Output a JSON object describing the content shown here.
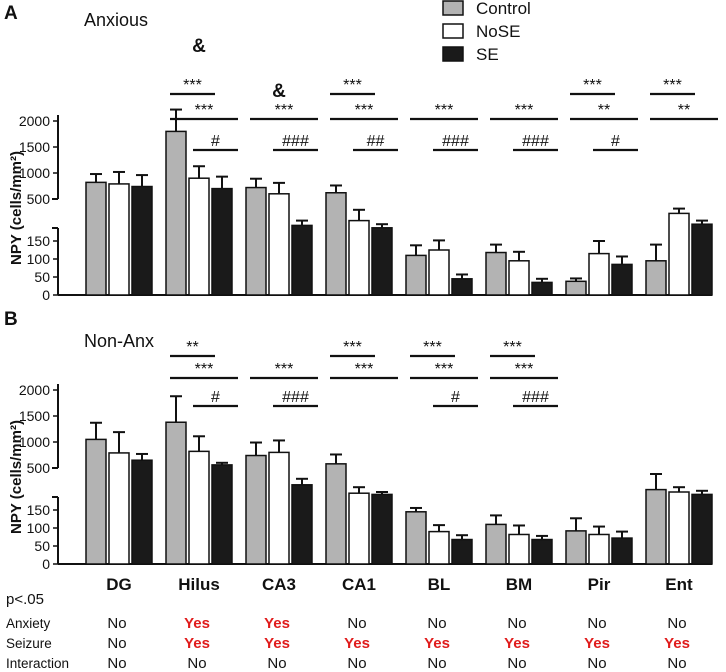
{
  "legend": {
    "items": [
      {
        "label": "Control",
        "color": "#b3b3b3"
      },
      {
        "label": "NoSE",
        "color": "#ffffff"
      },
      {
        "label": "SE",
        "color": "#1a1a1a"
      }
    ]
  },
  "colors": {
    "control": "#b3b3b3",
    "nose": "#ffffff",
    "se": "#1a1a1a",
    "text": "#111111",
    "highlight": "#e01b1b"
  },
  "chart_data": [
    {
      "type": "bar",
      "panel_letter": "A",
      "title": "Anxious",
      "ylabel": "NPY (cells/mm²)",
      "categories": [
        "DG",
        "Hilus",
        "CA3",
        "CA1",
        "BL",
        "BM",
        "Pir",
        "Ent"
      ],
      "axis_break": true,
      "upper_ticks": [
        "500",
        "1000",
        "1500",
        "2000"
      ],
      "lower_ticks": [
        "0",
        "50",
        "100",
        "150"
      ],
      "series": [
        {
          "name": "Control",
          "values": [
            820,
            1800,
            720,
            620,
            110,
            118,
            38,
            95
          ],
          "errors": [
            160,
            420,
            170,
            140,
            28,
            22,
            8,
            45
          ]
        },
        {
          "name": "NoSE",
          "values": [
            790,
            900,
            600,
            320,
            125,
            95,
            115,
            380
          ],
          "errors": [
            230,
            230,
            210,
            90,
            30,
            25,
            35,
            40
          ]
        },
        {
          "name": "SE",
          "values": [
            740,
            700,
            280,
            260,
            45,
            35,
            85,
            290
          ],
          "errors": [
            220,
            230,
            40,
            30,
            12,
            10,
            22,
            30
          ]
        }
      ],
      "annotations": [
        {
          "text": "&",
          "cat": 1
        },
        {
          "text": "&",
          "cat": 2
        },
        {
          "text": "***",
          "cat": 1,
          "from": 0,
          "to": 1,
          "row": 0
        },
        {
          "text": "***",
          "cat": 1,
          "from": 0,
          "to": 2,
          "row": 1
        },
        {
          "text": "#",
          "cat": 1,
          "from": 1,
          "to": 2,
          "row": 2
        },
        {
          "text": "***",
          "cat": 2,
          "from": 0,
          "to": 2,
          "row": 1
        },
        {
          "text": "###",
          "cat": 2,
          "from": 1,
          "to": 2,
          "row": 2
        },
        {
          "text": "***",
          "cat": 3,
          "from": 0,
          "to": 1,
          "row": 0
        },
        {
          "text": "***",
          "cat": 3,
          "from": 0,
          "to": 2,
          "row": 1
        },
        {
          "text": "##",
          "cat": 3,
          "from": 1,
          "to": 2,
          "row": 2
        },
        {
          "text": "***",
          "cat": 4,
          "from": 0,
          "to": 2,
          "row": 1
        },
        {
          "text": "###",
          "cat": 4,
          "from": 1,
          "to": 2,
          "row": 2
        },
        {
          "text": "***",
          "cat": 5,
          "from": 0,
          "to": 2,
          "row": 1
        },
        {
          "text": "###",
          "cat": 5,
          "from": 1,
          "to": 2,
          "row": 2
        },
        {
          "text": "***",
          "cat": 6,
          "from": 0,
          "to": 1,
          "row": 0
        },
        {
          "text": "**",
          "cat": 6,
          "from": 0,
          "to": 2,
          "row": 1
        },
        {
          "text": "#",
          "cat": 6,
          "from": 1,
          "to": 2,
          "row": 2
        },
        {
          "text": "***",
          "cat": 7,
          "from": 0,
          "to": 1,
          "row": 0
        },
        {
          "text": "**",
          "cat": 7,
          "from": 0,
          "to": 2,
          "row": 1
        }
      ]
    },
    {
      "type": "bar",
      "panel_letter": "B",
      "title": "Non-Anx",
      "ylabel": "NPY (cells/mm²)",
      "categories": [
        "DG",
        "Hilus",
        "CA3",
        "CA1",
        "BL",
        "BM",
        "Pir",
        "Ent"
      ],
      "axis_break": true,
      "upper_ticks": [
        "500",
        "1000",
        "1500",
        "2000"
      ],
      "lower_ticks": [
        "0",
        "50",
        "100",
        "150"
      ],
      "series": [
        {
          "name": "Control",
          "values": [
            1050,
            1380,
            740,
            580,
            145,
            110,
            92,
            320
          ],
          "errors": [
            320,
            500,
            250,
            180,
            22,
            25,
            35,
            130
          ]
        },
        {
          "name": "NoSE",
          "values": [
            790,
            820,
            800,
            290,
            90,
            82,
            82,
            300
          ],
          "errors": [
            400,
            290,
            230,
            50,
            18,
            25,
            22,
            40
          ]
        },
        {
          "name": "SE",
          "values": [
            650,
            560,
            360,
            280,
            68,
            68,
            72,
            280
          ],
          "errors": [
            120,
            40,
            50,
            20,
            12,
            10,
            18,
            30
          ]
        }
      ],
      "annotations": [
        {
          "text": "**",
          "cat": 1,
          "from": 0,
          "to": 1,
          "row": 0
        },
        {
          "text": "***",
          "cat": 1,
          "from": 0,
          "to": 2,
          "row": 1
        },
        {
          "text": "#",
          "cat": 1,
          "from": 1,
          "to": 2,
          "row": 2
        },
        {
          "text": "***",
          "cat": 2,
          "from": 0,
          "to": 2,
          "row": 1
        },
        {
          "text": "###",
          "cat": 2,
          "from": 1,
          "to": 2,
          "row": 2
        },
        {
          "text": "***",
          "cat": 3,
          "from": 0,
          "to": 1,
          "row": 0
        },
        {
          "text": "***",
          "cat": 3,
          "from": 0,
          "to": 2,
          "row": 1
        },
        {
          "text": "***",
          "cat": 4,
          "from": 0,
          "to": 1,
          "row": 0
        },
        {
          "text": "***",
          "cat": 4,
          "from": 0,
          "to": 2,
          "row": 1
        },
        {
          "text": "#",
          "cat": 4,
          "from": 1,
          "to": 2,
          "row": 2
        },
        {
          "text": "***",
          "cat": 5,
          "from": 0,
          "to": 1,
          "row": 0
        },
        {
          "text": "***",
          "cat": 5,
          "from": 0,
          "to": 2,
          "row": 1
        },
        {
          "text": "###",
          "cat": 5,
          "from": 1,
          "to": 2,
          "row": 2
        }
      ]
    }
  ],
  "stats_table": {
    "header": "p<.05",
    "rows": [
      {
        "label": "Anxiety",
        "values": [
          "No",
          "Yes",
          "Yes",
          "No",
          "No",
          "No",
          "No",
          "No"
        ]
      },
      {
        "label": "Seizure",
        "values": [
          "No",
          "Yes",
          "Yes",
          "Yes",
          "Yes",
          "Yes",
          "Yes",
          "Yes"
        ]
      },
      {
        "label": "Interaction",
        "values": [
          "No",
          "No",
          "No",
          "No",
          "No",
          "No",
          "No",
          "No"
        ]
      }
    ]
  }
}
